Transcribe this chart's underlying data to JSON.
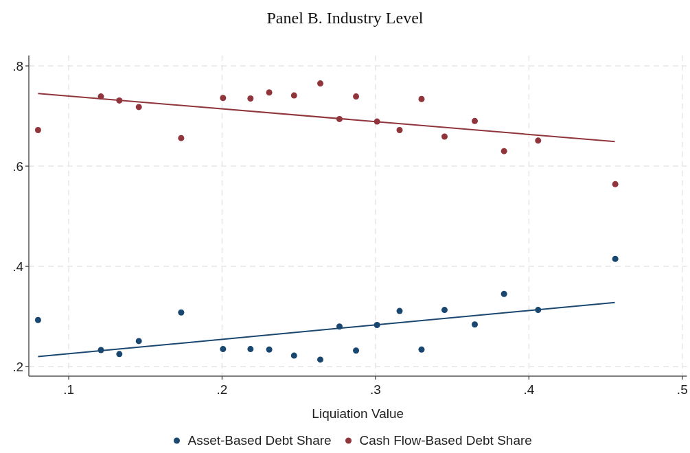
{
  "chart_data": {
    "type": "scatter",
    "title": "Panel B. Industry Level",
    "xlabel": "Liquiation Value",
    "xlim": [
      0.074,
      0.503
    ],
    "ylim": [
      0.181,
      0.821
    ],
    "xticks": [
      {
        "value": 0.1,
        "label": ".1"
      },
      {
        "value": 0.2,
        "label": ".2"
      },
      {
        "value": 0.3,
        "label": ".3"
      },
      {
        "value": 0.4,
        "label": ".4"
      },
      {
        "value": 0.5,
        "label": ".5"
      }
    ],
    "yticks": [
      {
        "value": 0.2,
        "label": ".2"
      },
      {
        "value": 0.4,
        "label": ".4"
      },
      {
        "value": 0.6,
        "label": ".6"
      },
      {
        "value": 0.8,
        "label": ".8"
      }
    ],
    "grid": true,
    "legend": "bottom",
    "marker": "circle",
    "series": [
      {
        "name": "Asset-Based Debt Share",
        "color": "#1a476f",
        "x": [
          0.08,
          0.121,
          0.133,
          0.1457,
          0.1733,
          0.2006,
          0.2185,
          0.2307,
          0.2469,
          0.264,
          0.2765,
          0.2873,
          0.301,
          0.3157,
          0.33,
          0.345,
          0.3647,
          0.3838,
          0.406,
          0.4563
        ],
        "values": [
          0.293,
          0.233,
          0.225,
          0.251,
          0.308,
          0.235,
          0.235,
          0.234,
          0.222,
          0.214,
          0.28,
          0.232,
          0.283,
          0.311,
          0.234,
          0.313,
          0.284,
          0.345,
          0.313,
          0.415
        ]
      },
      {
        "name": "Cash Flow-Based Debt Share",
        "color": "#90353b",
        "x": [
          0.08,
          0.121,
          0.133,
          0.1457,
          0.1733,
          0.2006,
          0.2185,
          0.2307,
          0.2469,
          0.264,
          0.2765,
          0.2873,
          0.301,
          0.3157,
          0.33,
          0.345,
          0.3647,
          0.3838,
          0.406,
          0.4563
        ],
        "values": [
          0.672,
          0.739,
          0.731,
          0.718,
          0.656,
          0.736,
          0.735,
          0.747,
          0.741,
          0.765,
          0.694,
          0.739,
          0.689,
          0.672,
          0.734,
          0.659,
          0.69,
          0.63,
          0.651,
          0.564
        ]
      },
      {
        "type": "line",
        "color": "#1a476f",
        "marker": "none",
        "x": [
          0.08,
          0.456
        ],
        "values": [
          0.22,
          0.328
        ]
      },
      {
        "type": "line",
        "color": "#90353b",
        "marker": "none",
        "x": [
          0.08,
          0.456
        ],
        "values": [
          0.745,
          0.649
        ]
      }
    ]
  }
}
